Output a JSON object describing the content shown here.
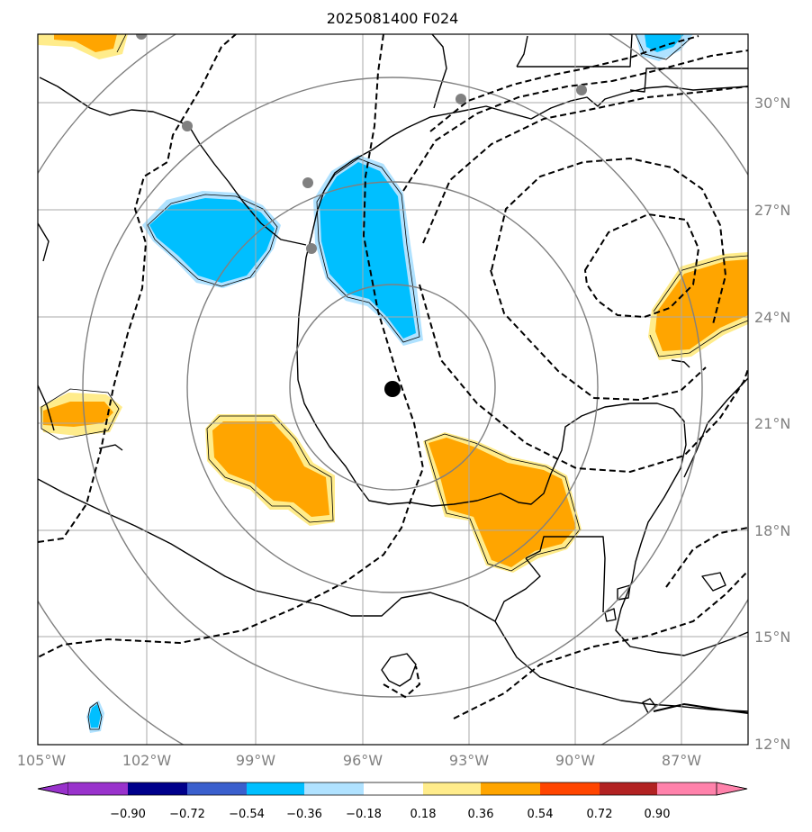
{
  "title": "2025081400 F024",
  "lon_labels": [
    "105°W",
    "102°W",
    "99°W",
    "96°W",
    "93°W",
    "90°W",
    "87°W"
  ],
  "lat_labels": [
    "30°N",
    "27°N",
    "24°N",
    "21°N",
    "18°N",
    "15°N",
    "12°N"
  ],
  "colorbar": {
    "ticks": [
      "−0.90",
      "−0.72",
      "−0.54",
      "−0.36",
      "−0.18",
      "0.18",
      "0.36",
      "0.54",
      "0.72",
      "0.90"
    ],
    "colors": [
      "#9932cc",
      "#00008b",
      "#3a5fcd",
      "#00bfff",
      "#b0e2ff",
      "#ffffff",
      "#ffec8b",
      "#ffa500",
      "#ff4500",
      "#b22222",
      "#ff82ab"
    ]
  },
  "storm_center": {
    "lon": -95.1,
    "lat": 21.9
  },
  "station_markers": [
    {
      "lon": -102.2,
      "lat": 31.8
    },
    {
      "lon": -101.0,
      "lat": 29.2
    },
    {
      "lon": -97.5,
      "lat": 27.7
    },
    {
      "lon": -97.4,
      "lat": 26.0
    },
    {
      "lon": -93.2,
      "lat": 30.1
    },
    {
      "lon": -90.2,
      "lat": 30.3
    }
  ],
  "range_rings_deg": [
    2.8,
    5.5,
    8.3,
    11.0
  ],
  "colors": {
    "grid": "#a9a9a9",
    "ring": "#808080",
    "coast": "#000000",
    "station": "#808080",
    "center": "#000000"
  }
}
